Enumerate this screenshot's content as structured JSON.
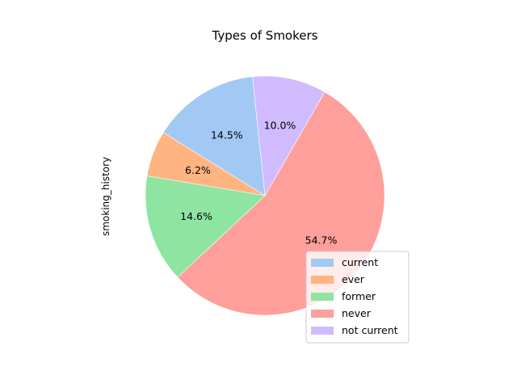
{
  "chart_data": {
    "type": "pie",
    "title": "Types of Smokers",
    "ylabel": "smoking_history",
    "categories": [
      "current",
      "ever",
      "former",
      "never",
      "not current"
    ],
    "values": [
      14.5,
      6.2,
      14.6,
      54.7,
      10.0
    ],
    "labels": [
      "14.5%",
      "6.2%",
      "14.6%",
      "54.7%",
      "10.0%"
    ],
    "colors": [
      "#a1c9f4",
      "#ffb482",
      "#8de5a1",
      "#ff9f9b",
      "#d0bbff"
    ],
    "start_angle_deg": 96,
    "direction": "counterclockwise",
    "legend": {
      "location": "lower-right",
      "entries": [
        "current",
        "ever",
        "former",
        "never",
        "not current"
      ]
    }
  }
}
